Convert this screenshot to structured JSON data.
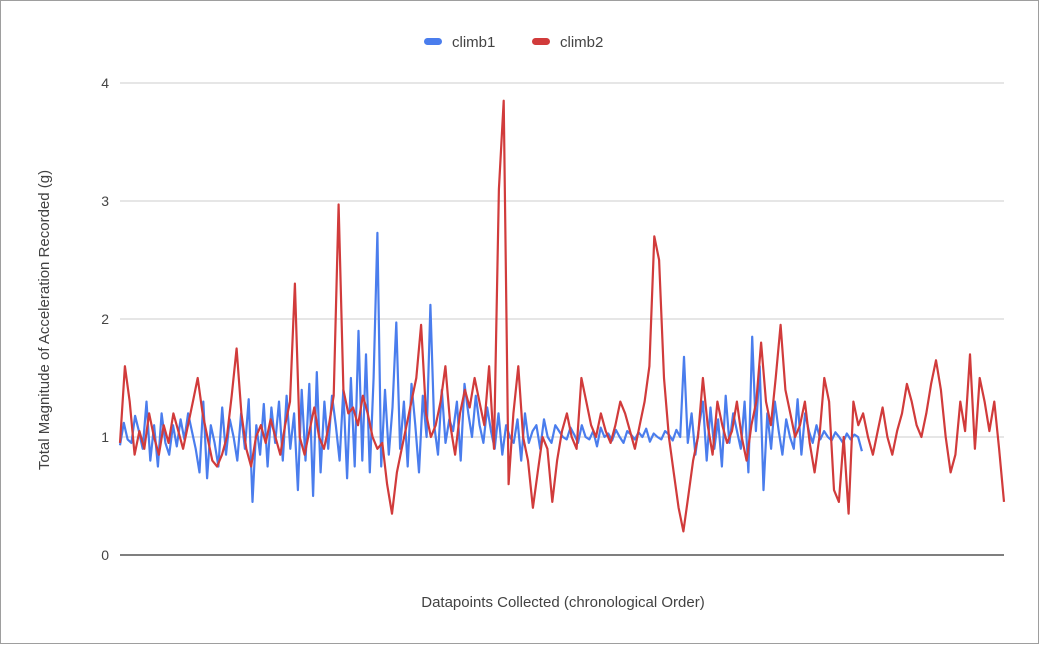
{
  "chart_data": {
    "type": "line",
    "title": "",
    "xlabel": "Datapoints Collected (chronological Order)",
    "ylabel": "Total Magnitude of Acceleration Recorded (g)",
    "ylim": [
      0,
      4
    ],
    "y_ticks": [
      "0",
      "1",
      "2",
      "3",
      "4"
    ],
    "grid": true,
    "legend_position": "top",
    "x_tick_labels_shown": false,
    "series": [
      {
        "name": "climb1",
        "color": "#4a7ded",
        "x_range": [
          0,
          470
        ],
        "values": [
          0.93,
          1.12,
          0.98,
          0.95,
          1.18,
          1.05,
          0.9,
          1.3,
          0.8,
          1.1,
          0.75,
          1.2,
          0.95,
          0.85,
          1.1,
          0.92,
          1.15,
          0.98,
          1.2,
          1.05,
          0.9,
          0.7,
          1.3,
          0.65,
          1.1,
          0.95,
          0.75,
          1.25,
          0.85,
          1.15,
          1.0,
          0.8,
          1.2,
          0.9,
          1.32,
          0.45,
          1.1,
          0.85,
          1.28,
          0.75,
          1.25,
          0.95,
          1.3,
          0.8,
          1.35,
          0.9,
          1.2,
          0.55,
          1.4,
          0.8,
          1.45,
          0.5,
          1.55,
          0.7,
          1.3,
          0.9,
          1.35,
          1.1,
          0.8,
          1.4,
          0.65,
          1.5,
          0.75,
          1.9,
          0.8,
          1.7,
          0.7,
          1.5,
          2.73,
          0.75,
          1.4,
          0.85,
          1.25,
          1.97,
          0.9,
          1.3,
          0.75,
          1.45,
          1.1,
          0.7,
          1.35,
          1.0,
          2.12,
          1.1,
          0.85,
          1.4,
          0.95,
          1.15,
          1.05,
          1.3,
          0.8,
          1.45,
          1.2,
          1.0,
          1.35,
          1.1,
          0.95,
          1.25,
          1.05,
          0.9,
          1.2,
          0.85,
          1.1,
          1.0,
          0.95,
          1.15,
          0.8,
          1.2,
          0.95,
          1.05,
          1.1,
          0.9,
          1.15,
          1.0,
          0.95,
          1.1,
          1.05,
          1.0,
          0.98,
          1.08,
          1.02,
          0.95,
          1.1,
          1.0,
          0.98,
          1.05,
          0.92,
          1.08,
          1.0,
          1.03,
          0.97,
          1.06,
          1.0,
          0.95,
          1.05,
          1.02,
          0.98,
          1.04,
          1.0,
          1.07,
          0.96,
          1.03,
          1.0,
          0.98,
          1.05,
          1.02,
          0.97,
          1.06,
          1.0,
          1.68,
          0.95,
          1.2,
          0.85,
          1.1,
          1.3,
          0.8,
          1.25,
          0.9,
          1.15,
          0.75,
          1.35,
          0.95,
          1.2,
          1.05,
          0.9,
          1.3,
          0.7,
          1.85,
          1.05,
          1.6,
          0.55,
          1.2,
          0.9,
          1.3,
          1.05,
          0.85,
          1.15,
          1.0,
          0.9,
          1.32,
          0.85,
          1.2,
          1.05,
          0.95,
          1.1,
          0.98,
          1.05,
          1.0,
          0.97,
          1.04,
          1.0,
          0.95,
          1.03,
          0.98,
          1.02,
          1.0,
          0.88
        ]
      },
      {
        "name": "climb2",
        "color": "#d13b3b",
        "x_range": [
          0,
          560
        ],
        "values": [
          0.95,
          1.6,
          1.3,
          0.85,
          1.05,
          0.9,
          1.2,
          1.0,
          0.85,
          1.1,
          0.95,
          1.2,
          1.05,
          0.9,
          1.1,
          1.3,
          1.5,
          1.2,
          1.0,
          0.8,
          0.75,
          0.85,
          1.0,
          1.35,
          1.75,
          1.2,
          0.9,
          0.75,
          1.0,
          1.1,
          0.95,
          1.15,
          1.0,
          0.85,
          1.1,
          1.3,
          2.3,
          1.0,
          0.85,
          1.05,
          1.25,
          1.0,
          0.9,
          1.1,
          1.35,
          2.97,
          1.4,
          1.2,
          1.25,
          1.1,
          1.35,
          1.2,
          1.0,
          0.9,
          0.95,
          0.6,
          0.35,
          0.7,
          0.9,
          1.1,
          1.3,
          1.5,
          1.95,
          1.2,
          1.0,
          1.1,
          1.3,
          1.6,
          1.1,
          0.85,
          1.2,
          1.4,
          1.25,
          1.5,
          1.3,
          1.1,
          1.6,
          0.9,
          3.1,
          3.85,
          0.6,
          1.2,
          1.6,
          1.0,
          0.8,
          0.4,
          0.7,
          1.0,
          0.9,
          0.45,
          0.8,
          1.05,
          1.2,
          1.0,
          0.9,
          1.5,
          1.3,
          1.1,
          1.0,
          1.2,
          1.05,
          0.95,
          1.1,
          1.3,
          1.2,
          1.05,
          0.9,
          1.1,
          1.3,
          1.6,
          2.7,
          2.5,
          1.5,
          1.0,
          0.7,
          0.4,
          0.2,
          0.5,
          0.8,
          1.0,
          1.5,
          1.1,
          0.85,
          1.3,
          1.1,
          0.95,
          1.05,
          1.3,
          1.0,
          0.8,
          1.1,
          1.3,
          1.8,
          1.3,
          1.1,
          1.5,
          1.95,
          1.4,
          1.2,
          1.0,
          1.1,
          1.3,
          0.95,
          0.7,
          1.0,
          1.5,
          1.3,
          0.55,
          0.45,
          1.0,
          0.35,
          1.3,
          1.1,
          1.2,
          1.0,
          0.85,
          1.05,
          1.25,
          1.0,
          0.85,
          1.05,
          1.2,
          1.45,
          1.3,
          1.1,
          1.0,
          1.2,
          1.45,
          1.65,
          1.4,
          1.0,
          0.7,
          0.85,
          1.3,
          1.05,
          1.7,
          0.9,
          1.5,
          1.3,
          1.05,
          1.3,
          0.9,
          0.45
        ]
      }
    ]
  }
}
